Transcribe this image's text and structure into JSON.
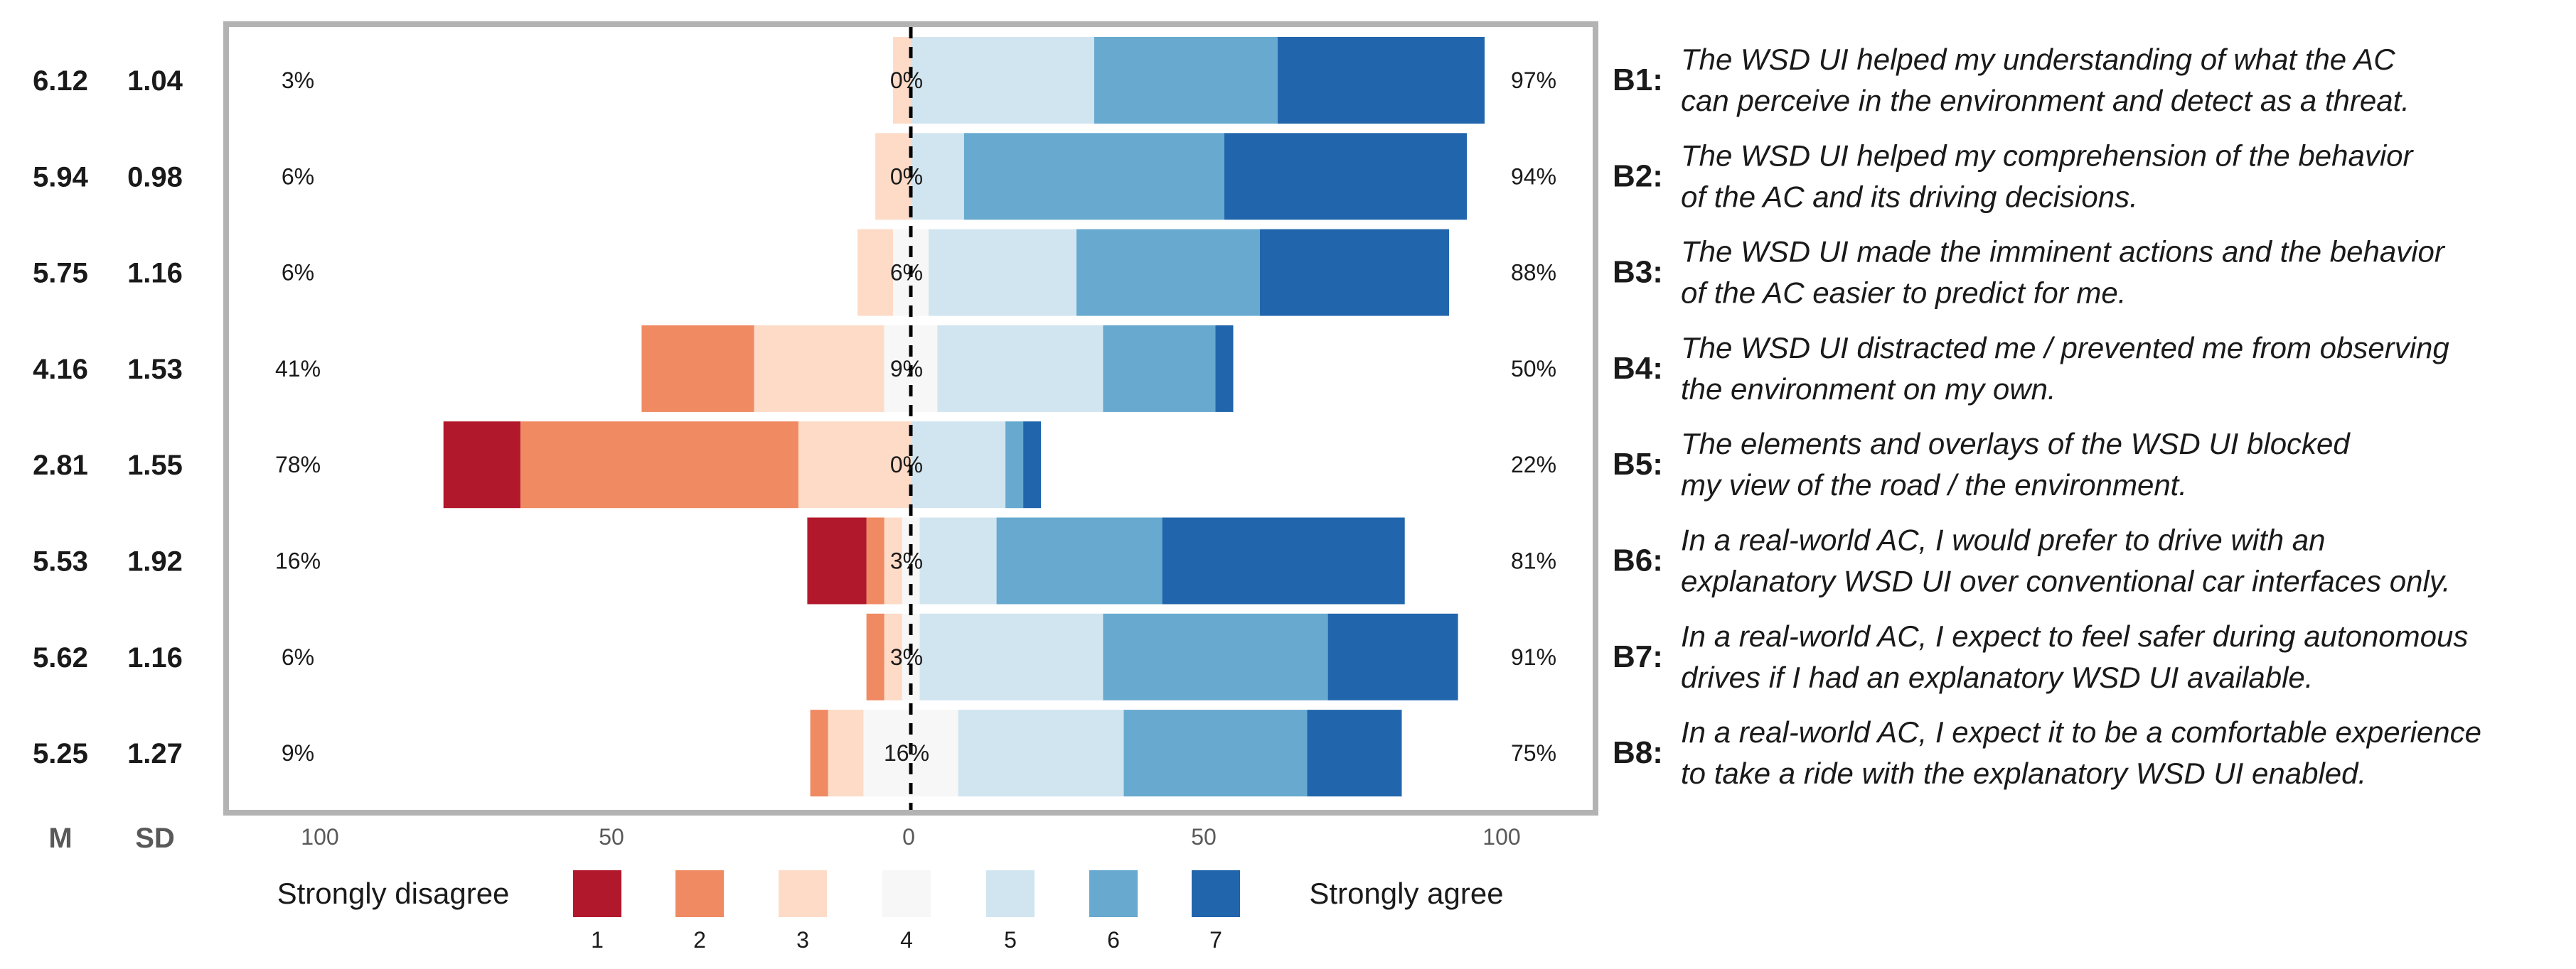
{
  "chart_data": {
    "type": "bar",
    "subtype": "diverging-stacked-likert",
    "x_ticks": [
      100,
      50,
      0,
      50,
      100
    ],
    "xlim": [
      -115,
      115
    ],
    "stat_headers": [
      "M",
      "SD"
    ],
    "legend": {
      "left_label": "Strongly disagree",
      "right_label": "Strongly agree",
      "levels": [
        "1",
        "2",
        "3",
        "4",
        "5",
        "6",
        "7"
      ],
      "colors": [
        "#b2182b",
        "#ef8a62",
        "#fddbc7",
        "#f7f7f7",
        "#d1e5f0",
        "#67a9cf",
        "#2166ac"
      ]
    },
    "rows": [
      {
        "id": "B1:",
        "mean": "6.12",
        "sd": "1.04",
        "neg_pct": "3%",
        "neutral_pct": "0%",
        "pos_pct": "97%",
        "text": [
          "The WSD UI helped my understanding of what the AC",
          "can perceive in the environment and detect as a threat."
        ],
        "values": [
          0,
          0,
          3,
          0,
          31,
          31,
          35
        ]
      },
      {
        "id": "B2:",
        "mean": "5.94",
        "sd": "0.98",
        "neg_pct": "6%",
        "neutral_pct": "0%",
        "pos_pct": "94%",
        "text": [
          "The WSD UI helped my comprehension of the behavior",
          "of the AC and its driving decisions."
        ],
        "values": [
          0,
          0,
          6,
          0,
          9,
          44,
          41
        ]
      },
      {
        "id": "B3:",
        "mean": "5.75",
        "sd": "1.16",
        "neg_pct": "6%",
        "neutral_pct": "6%",
        "pos_pct": "88%",
        "text": [
          "The WSD UI made the imminent actions and the behavior",
          "of the AC easier to predict for me."
        ],
        "values": [
          0,
          0,
          6,
          6,
          25,
          31,
          32
        ]
      },
      {
        "id": "B4:",
        "mean": "4.16",
        "sd": "1.53",
        "neg_pct": "41%",
        "neutral_pct": "9%",
        "pos_pct": "50%",
        "text": [
          "The WSD UI distracted me / prevented me from observing",
          "the environment on my own."
        ],
        "values": [
          0,
          19,
          22,
          9,
          28,
          19,
          3
        ]
      },
      {
        "id": "B5:",
        "mean": "2.81",
        "sd": "1.55",
        "neg_pct": "78%",
        "neutral_pct": "0%",
        "pos_pct": "22%",
        "text": [
          "The elements and overlays of the WSD UI blocked",
          "my view of the road / the environment."
        ],
        "values": [
          13,
          47,
          19,
          0,
          16,
          3,
          3
        ]
      },
      {
        "id": "B6:",
        "mean": "5.53",
        "sd": "1.92",
        "neg_pct": "16%",
        "neutral_pct": "3%",
        "pos_pct": "81%",
        "text": [
          "In a real-world AC, I would prefer to drive with an",
          "explanatory WSD UI over conventional car interfaces only."
        ],
        "values": [
          10,
          3,
          3,
          3,
          13,
          28,
          41
        ]
      },
      {
        "id": "B7:",
        "mean": "5.62",
        "sd": "1.16",
        "neg_pct": "6%",
        "neutral_pct": "3%",
        "pos_pct": "91%",
        "text": [
          "In a real-world AC, I expect to feel safer during autonomous",
          "drives if I had an explanatory WSD UI available."
        ],
        "values": [
          0,
          3,
          3,
          3,
          31,
          38,
          22
        ]
      },
      {
        "id": "B8:",
        "mean": "5.25",
        "sd": "1.27",
        "neg_pct": "9%",
        "neutral_pct": "16%",
        "pos_pct": "75%",
        "text": [
          "In a real-world AC, I expect it to be a comfortable experience",
          "to take a ride with the explanatory WSD UI enabled."
        ],
        "values": [
          0,
          3,
          6,
          16,
          28,
          31,
          16
        ]
      }
    ]
  }
}
